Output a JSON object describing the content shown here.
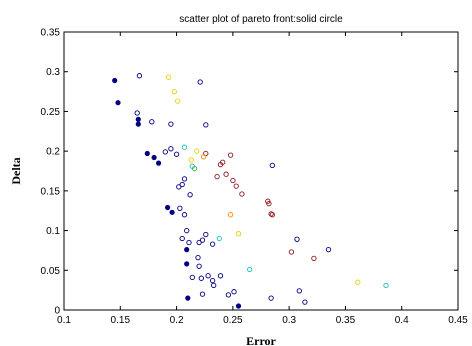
{
  "chart_data": {
    "type": "scatter",
    "title": "scatter plot of pareto front:solid circle",
    "xlabel": "Error",
    "ylabel": "Delta",
    "xlim": [
      0.1,
      0.45
    ],
    "ylim": [
      0,
      0.35
    ],
    "xticks": [
      "0.1",
      "0.15",
      "0.2",
      "0.25",
      "0.3",
      "0.35",
      "0.4",
      "0.45"
    ],
    "yticks": [
      "0",
      "0.05",
      "0.1",
      "0.15",
      "0.2",
      "0.25",
      "0.3",
      "0.35"
    ],
    "grid": false,
    "series": [
      {
        "marker": "filled-circle",
        "color": "#000080",
        "points": [
          [
            0.145,
            0.289
          ],
          [
            0.148,
            0.261
          ],
          [
            0.166,
            0.24
          ],
          [
            0.166,
            0.234
          ],
          [
            0.174,
            0.197
          ],
          [
            0.18,
            0.192
          ],
          [
            0.184,
            0.185
          ],
          [
            0.192,
            0.129
          ],
          [
            0.196,
            0.123
          ],
          [
            0.209,
            0.076
          ],
          [
            0.209,
            0.058
          ],
          [
            0.21,
            0.015
          ],
          [
            0.255,
            0.005
          ]
        ]
      },
      {
        "marker": "open-circle",
        "color": "#000080",
        "points": [
          [
            0.167,
            0.295
          ],
          [
            0.165,
            0.248
          ],
          [
            0.178,
            0.237
          ],
          [
            0.195,
            0.234
          ],
          [
            0.19,
            0.199
          ],
          [
            0.195,
            0.203
          ],
          [
            0.2,
            0.196
          ],
          [
            0.202,
            0.155
          ],
          [
            0.205,
            0.158
          ],
          [
            0.207,
            0.165
          ],
          [
            0.212,
            0.145
          ],
          [
            0.203,
            0.128
          ],
          [
            0.207,
            0.12
          ],
          [
            0.209,
            0.1
          ],
          [
            0.205,
            0.09
          ],
          [
            0.211,
            0.085
          ],
          [
            0.22,
            0.085
          ],
          [
            0.223,
            0.088
          ],
          [
            0.232,
            0.083
          ],
          [
            0.226,
            0.095
          ],
          [
            0.219,
            0.066
          ],
          [
            0.22,
            0.055
          ],
          [
            0.214,
            0.041
          ],
          [
            0.222,
            0.04
          ],
          [
            0.228,
            0.043
          ],
          [
            0.232,
            0.037
          ],
          [
            0.233,
            0.031
          ],
          [
            0.239,
            0.043
          ],
          [
            0.223,
            0.02
          ],
          [
            0.246,
            0.019
          ],
          [
            0.251,
            0.023
          ],
          [
            0.284,
            0.015
          ],
          [
            0.309,
            0.024
          ],
          [
            0.314,
            0.01
          ],
          [
            0.335,
            0.076
          ],
          [
            0.307,
            0.089
          ],
          [
            0.221,
            0.287
          ],
          [
            0.226,
            0.233
          ],
          [
            0.285,
            0.182
          ]
        ]
      },
      {
        "marker": "open-circle",
        "color": "#8B1A1A",
        "points": [
          [
            0.226,
            0.197
          ],
          [
            0.236,
            0.168
          ],
          [
            0.241,
            0.186
          ],
          [
            0.244,
            0.171
          ],
          [
            0.248,
            0.195
          ],
          [
            0.25,
            0.163
          ],
          [
            0.253,
            0.156
          ],
          [
            0.258,
            0.146
          ],
          [
            0.239,
            0.183
          ],
          [
            0.282,
            0.134
          ],
          [
            0.281,
            0.137
          ],
          [
            0.285,
            0.12
          ],
          [
            0.284,
            0.121
          ],
          [
            0.302,
            0.073
          ],
          [
            0.322,
            0.065
          ]
        ]
      },
      {
        "marker": "open-circle",
        "color": "#FF8C00",
        "points": [
          [
            0.224,
            0.193
          ],
          [
            0.248,
            0.12
          ]
        ]
      },
      {
        "marker": "open-circle",
        "color": "#E8D200",
        "points": [
          [
            0.193,
            0.293
          ],
          [
            0.198,
            0.275
          ],
          [
            0.201,
            0.263
          ],
          [
            0.218,
            0.2
          ],
          [
            0.213,
            0.189
          ],
          [
            0.255,
            0.096
          ],
          [
            0.361,
            0.035
          ]
        ]
      },
      {
        "marker": "open-circle",
        "color": "#20C0C0",
        "points": [
          [
            0.207,
            0.205
          ],
          [
            0.214,
            0.181
          ],
          [
            0.238,
            0.09
          ],
          [
            0.265,
            0.051
          ],
          [
            0.386,
            0.031
          ]
        ]
      },
      {
        "marker": "open-circle",
        "color": "#40B040",
        "points": [
          [
            0.216,
            0.178
          ]
        ]
      }
    ]
  }
}
